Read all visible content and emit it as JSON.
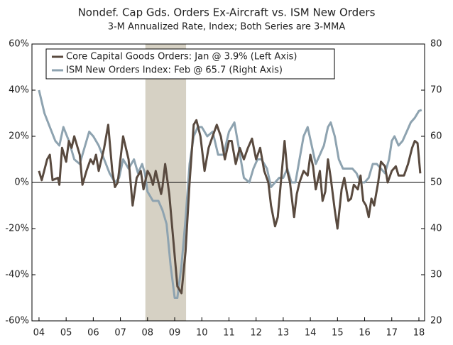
{
  "chart_data": {
    "type": "line",
    "title": "Nondef. Cap Gds. Orders Ex-Aircraft vs. ISM New Orders",
    "subtitle": "3-M Annualized Rate, Index; Both Series are 3-MMA",
    "xlim": [
      2003.74,
      2018.21
    ],
    "xticks": [
      {
        "value": 2004,
        "label": "04"
      },
      {
        "value": 2005,
        "label": "05"
      },
      {
        "value": 2006,
        "label": "06"
      },
      {
        "value": 2007,
        "label": "07"
      },
      {
        "value": 2008,
        "label": "08"
      },
      {
        "value": 2009,
        "label": "09"
      },
      {
        "value": 2010,
        "label": "10"
      },
      {
        "value": 2011,
        "label": "11"
      },
      {
        "value": 2012,
        "label": "12"
      },
      {
        "value": 2013,
        "label": "13"
      },
      {
        "value": 2014,
        "label": "14"
      },
      {
        "value": 2015,
        "label": "15"
      },
      {
        "value": 2016,
        "label": "16"
      },
      {
        "value": 2017,
        "label": "17"
      },
      {
        "value": 2018,
        "label": "18"
      }
    ],
    "ylim": [
      -60,
      60
    ],
    "yticks": [
      {
        "value": -60,
        "label": "-60%"
      },
      {
        "value": -40,
        "label": "-40%"
      },
      {
        "value": -20,
        "label": "-20%"
      },
      {
        "value": 0,
        "label": "0%"
      },
      {
        "value": 20,
        "label": "20%"
      },
      {
        "value": 40,
        "label": "40%"
      },
      {
        "value": 60,
        "label": "60%"
      }
    ],
    "y2lim": [
      20,
      80
    ],
    "y2ticks": [
      20,
      30,
      40,
      50,
      60,
      70,
      80
    ],
    "recession": [
      2007.92,
      2009.42
    ],
    "recession_color": "#d6d1c4",
    "legend": "upper left",
    "series": [
      {
        "name": "Core Capital Goods Orders: Jan @ 3.9% (Left Axis)",
        "color": "#594a3f",
        "x": [
          2004.0,
          2004.1,
          2004.3,
          2004.4,
          2004.5,
          2004.7,
          2004.75,
          2004.85,
          2005.0,
          2005.1,
          2005.2,
          2005.3,
          2005.5,
          2005.6,
          2005.75,
          2005.9,
          2006.0,
          2006.1,
          2006.2,
          2006.4,
          2006.55,
          2006.7,
          2006.8,
          2006.9,
          2007.0,
          2007.1,
          2007.3,
          2007.45,
          2007.6,
          2007.75,
          2007.85,
          2008.0,
          2008.1,
          2008.2,
          2008.3,
          2008.4,
          2008.5,
          2008.55,
          2008.65,
          2008.8,
          2008.95,
          2009.1,
          2009.25,
          2009.4,
          2009.55,
          2009.7,
          2009.8,
          2009.95,
          2010.1,
          2010.25,
          2010.4,
          2010.55,
          2010.7,
          2010.85,
          2011.0,
          2011.1,
          2011.25,
          2011.4,
          2011.55,
          2011.7,
          2011.85,
          2012.0,
          2012.15,
          2012.3,
          2012.45,
          2012.55,
          2012.7,
          2012.8,
          2012.95,
          2013.05,
          2013.15,
          2013.25,
          2013.4,
          2013.5,
          2013.6,
          2013.75,
          2013.9,
          2014.0,
          2014.1,
          2014.2,
          2014.35,
          2014.45,
          2014.55,
          2014.65,
          2014.75,
          2014.9,
          2015.0,
          2015.15,
          2015.25,
          2015.4,
          2015.5,
          2015.6,
          2015.75,
          2015.85,
          2015.95,
          2016.05,
          2016.15,
          2016.25,
          2016.35,
          2016.5,
          2016.6,
          2016.75,
          2016.85,
          2017.0,
          2017.15,
          2017.25,
          2017.45,
          2017.6,
          2017.75,
          2017.85,
          2017.95,
          2018.05
        ],
        "values": [
          5,
          1,
          10,
          12,
          1,
          2,
          -1,
          15,
          9,
          18,
          15,
          20,
          12,
          -1,
          5,
          10,
          8,
          12,
          5,
          15,
          25,
          5,
          -2,
          0,
          10,
          20,
          10,
          -10,
          2,
          5,
          -3,
          5,
          3,
          -1,
          5,
          0,
          -5,
          -2,
          8,
          -5,
          -25,
          -45,
          -48,
          -30,
          0,
          25,
          27,
          20,
          5,
          15,
          20,
          25,
          20,
          10,
          18,
          18,
          8,
          15,
          10,
          15,
          19,
          10,
          15,
          5,
          0,
          -10,
          -19,
          -15,
          5,
          18,
          5,
          0,
          -15,
          -5,
          0,
          5,
          3,
          12,
          7,
          -3,
          5,
          -8,
          -4,
          10,
          2,
          -12,
          -20,
          -3,
          2,
          -8,
          -7,
          -1,
          -3,
          3,
          -8,
          -10,
          -15,
          -7,
          -10,
          0,
          9,
          7,
          0,
          5,
          7,
          3,
          3,
          8,
          15,
          18,
          17,
          3.9
        ]
      },
      {
        "name": "ISM New Orders Index: Feb @ 65.7 (Right Axis)",
        "color": "#8ea3b0",
        "axis": "y2",
        "x": [
          2004.0,
          2004.2,
          2004.4,
          2004.6,
          2004.75,
          2004.9,
          2005.1,
          2005.3,
          2005.5,
          2005.7,
          2005.85,
          2006.0,
          2006.2,
          2006.4,
          2006.6,
          2006.8,
          2006.95,
          2007.1,
          2007.3,
          2007.5,
          2007.65,
          2007.8,
          2007.9,
          2008.0,
          2008.2,
          2008.4,
          2008.55,
          2008.7,
          2008.85,
          2009.0,
          2009.1,
          2009.25,
          2009.4,
          2009.55,
          2009.7,
          2009.85,
          2010.0,
          2010.2,
          2010.4,
          2010.6,
          2010.8,
          2011.0,
          2011.2,
          2011.35,
          2011.55,
          2011.75,
          2011.9,
          2012.05,
          2012.2,
          2012.4,
          2012.55,
          2012.7,
          2012.85,
          2013.0,
          2013.15,
          2013.3,
          2013.45,
          2013.6,
          2013.75,
          2013.9,
          2014.05,
          2014.2,
          2014.35,
          2014.5,
          2014.65,
          2014.75,
          2014.9,
          2015.05,
          2015.2,
          2015.35,
          2015.55,
          2015.7,
          2015.85,
          2016.0,
          2016.15,
          2016.3,
          2016.45,
          2016.6,
          2016.75,
          2016.9,
          2017.0,
          2017.1,
          2017.25,
          2017.4,
          2017.55,
          2017.7,
          2017.85,
          2018.0,
          2018.1
        ],
        "values": [
          70,
          65,
          62,
          59,
          58,
          62,
          59,
          55,
          54,
          58,
          61,
          60,
          58,
          55,
          52,
          50,
          51,
          55,
          53,
          55,
          52,
          54,
          52,
          48,
          46,
          46,
          44,
          41,
          32,
          25,
          25,
          32,
          42,
          54,
          60,
          62,
          62,
          60,
          61,
          56,
          56,
          61,
          63,
          58,
          51,
          50,
          53,
          55,
          55,
          53,
          49,
          50,
          51,
          51,
          53,
          50,
          50,
          55,
          60,
          62,
          58,
          54,
          56,
          58,
          62,
          63,
          60,
          55,
          53,
          53,
          53,
          52,
          50,
          50,
          51,
          54,
          54,
          53,
          52,
          55,
          59,
          60,
          58,
          59,
          61,
          63,
          64,
          65.5,
          65.7
        ]
      }
    ]
  }
}
